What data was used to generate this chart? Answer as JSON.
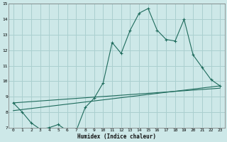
{
  "xlabel": "Humidex (Indice chaleur)",
  "bg_color": "#cde8e8",
  "grid_color": "#aacfcf",
  "line_color": "#1e6b5c",
  "xlim": [
    -0.5,
    23.5
  ],
  "ylim": [
    7,
    15
  ],
  "xticks": [
    0,
    1,
    2,
    3,
    4,
    5,
    6,
    7,
    8,
    9,
    10,
    11,
    12,
    13,
    14,
    15,
    16,
    17,
    18,
    19,
    20,
    21,
    22,
    23
  ],
  "yticks": [
    7,
    8,
    9,
    10,
    11,
    12,
    13,
    14,
    15
  ],
  "line1_x": [
    0,
    1,
    2,
    3,
    4,
    5,
    6,
    7,
    8,
    9,
    10,
    11,
    12,
    13,
    14,
    15,
    16,
    17,
    18,
    19,
    20,
    21,
    22,
    23
  ],
  "line1_y": [
    8.6,
    8.0,
    7.3,
    6.9,
    7.0,
    7.2,
    6.8,
    6.8,
    8.3,
    8.9,
    9.9,
    12.5,
    11.8,
    13.3,
    14.4,
    14.7,
    13.3,
    12.7,
    12.6,
    14.0,
    11.7,
    10.9,
    10.1,
    9.7
  ],
  "line2_x": [
    0,
    23
  ],
  "line2_y": [
    8.1,
    9.7
  ],
  "line3_x": [
    0,
    23
  ],
  "line3_y": [
    8.6,
    9.55
  ]
}
